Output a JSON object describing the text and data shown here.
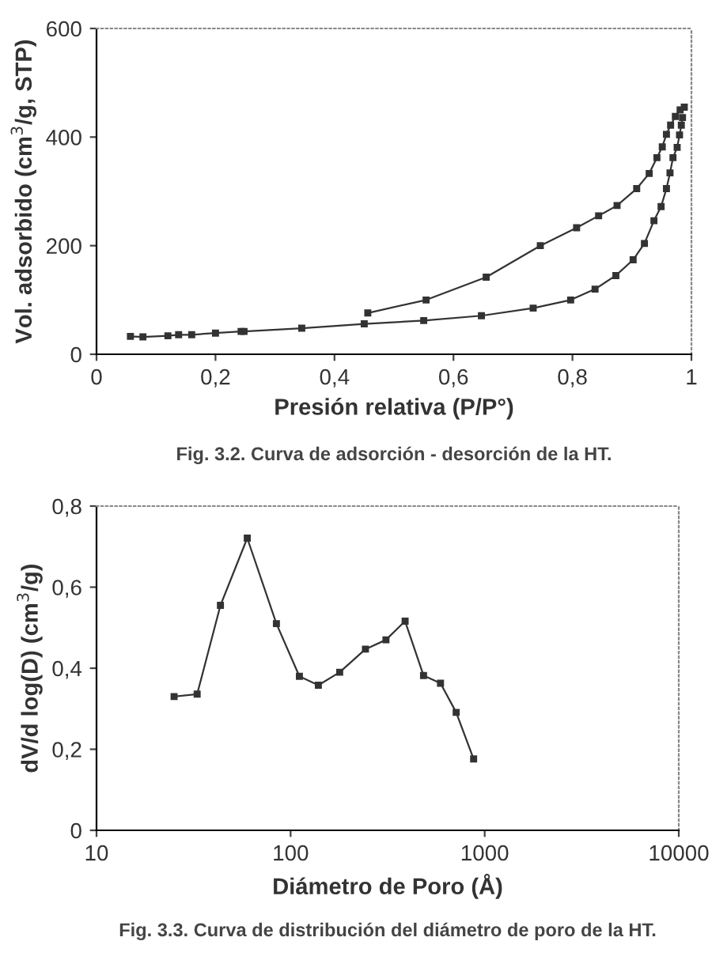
{
  "chart_data": [
    {
      "type": "line",
      "xlabel": "Presión relativa (P/P°)",
      "ylabel": "Vol. adsorbido (cm$^{3}$/g, STP)",
      "annotations": [
        "Fig. 3.2. Curva de adsorción - desorción de la HT."
      ],
      "marker": "square",
      "grid": false,
      "xlim": [
        0,
        1
      ],
      "xticks": [
        0,
        {
          "value": 0.2,
          "label": "0,2"
        },
        {
          "value": 0.4,
          "label": "0,4"
        },
        {
          "value": 0.6,
          "label": "0,6"
        },
        {
          "value": 0.8,
          "label": "0,8"
        },
        1
      ],
      "ylim": [
        0,
        600
      ],
      "yticks": [
        0,
        200,
        400,
        600
      ],
      "series": [
        {
          "color": "#333333",
          "x": [
            0.057,
            0.078,
            0.12,
            0.138,
            0.16,
            0.2,
            0.243,
            0.248,
            0.345,
            0.45,
            0.55,
            0.647,
            0.734,
            0.797,
            0.838,
            0.873,
            0.902,
            0.921,
            0.937,
            0.949,
            0.958,
            0.964,
            0.969,
            0.976,
            0.98,
            0.983,
            0.985
          ],
          "values": [
            33,
            32,
            34,
            36,
            36,
            39,
            42,
            42,
            48,
            56,
            62,
            71,
            85,
            100,
            120,
            145,
            174,
            204,
            246,
            272,
            305,
            334,
            362,
            381,
            404,
            422,
            436
          ]
        },
        {
          "color": "#333333",
          "x": [
            0.988,
            0.981,
            0.973,
            0.965,
            0.958,
            0.951,
            0.942,
            0.929,
            0.908,
            0.875,
            0.844,
            0.807,
            0.746,
            0.655,
            0.554,
            0.456
          ],
          "values": [
            455,
            450,
            438,
            422,
            405,
            382,
            362,
            333,
            305,
            274,
            255,
            233,
            200,
            142,
            100,
            76
          ]
        }
      ]
    },
    {
      "type": "line",
      "xlabel": "Diámetro de Poro (Å)",
      "ylabel": "dV/d log(D) (cm$^{3}$/g)",
      "annotations": [
        "Fig. 3.3. Curva de distribución del diámetro de poro de la HT."
      ],
      "marker": "square",
      "grid": false,
      "log": "x",
      "xlim": [
        10,
        10000
      ],
      "xticks": [
        10,
        100,
        1000,
        10000
      ],
      "ylim": [
        0,
        0.8
      ],
      "yticks": [
        0,
        {
          "value": 0.2,
          "label": "0,2"
        },
        {
          "value": 0.4,
          "label": "0,4"
        },
        {
          "value": 0.6,
          "label": "0,6"
        },
        {
          "value": 0.8,
          "label": "0,8"
        }
      ],
      "series": [
        {
          "color": "#333333",
          "x": [
            25.1,
            33,
            43.5,
            59.8,
            84.5,
            111,
            139,
            179,
            243,
            310,
            389,
            484,
            592,
            713,
            877
          ],
          "values": [
            0.33,
            0.336,
            0.555,
            0.721,
            0.51,
            0.38,
            0.358,
            0.39,
            0.447,
            0.47,
            0.516,
            0.382,
            0.363,
            0.291,
            0.176
          ]
        }
      ]
    }
  ]
}
